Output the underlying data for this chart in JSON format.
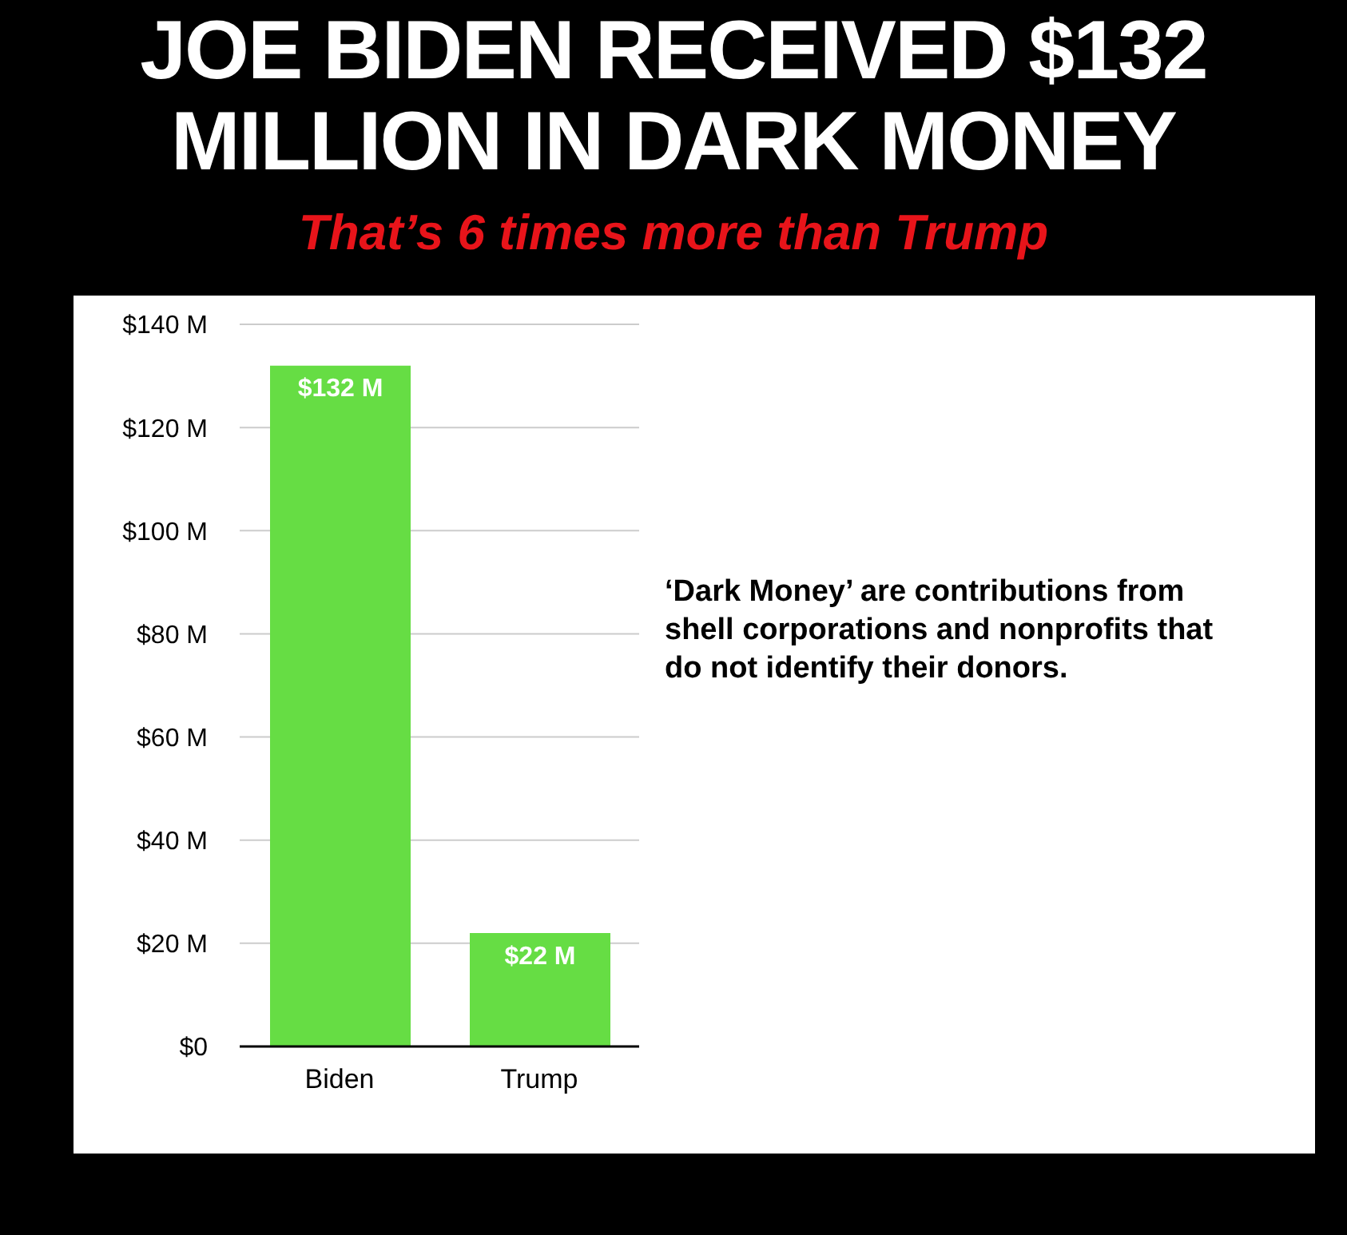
{
  "chart_data": {
    "type": "bar",
    "title": "JOE BIDEN RECEIVED $132 MILLION IN DARK MONEY",
    "subtitle": "That’s 6 times more than Trump",
    "categories": [
      "Biden",
      "Trump"
    ],
    "values": [
      132,
      22
    ],
    "value_labels": [
      "$132 M",
      "$22 M"
    ],
    "color": "#66dd44",
    "ylim": [
      0,
      140
    ],
    "yticks": [
      {
        "value": 0,
        "label": "$0"
      },
      {
        "value": 20,
        "label": "$20 M"
      },
      {
        "value": 40,
        "label": "$40 M"
      },
      {
        "value": 60,
        "label": "$60 M"
      },
      {
        "value": 80,
        "label": "$80 M"
      },
      {
        "value": 100,
        "label": "$100 M"
      },
      {
        "value": 120,
        "label": "$120 M"
      },
      {
        "value": 140,
        "label": "$140 M"
      }
    ],
    "grid": "y",
    "annotations": [
      "‘Dark Money’ are contributions from shell corporations and nonprofits that do not identify their donors."
    ]
  }
}
